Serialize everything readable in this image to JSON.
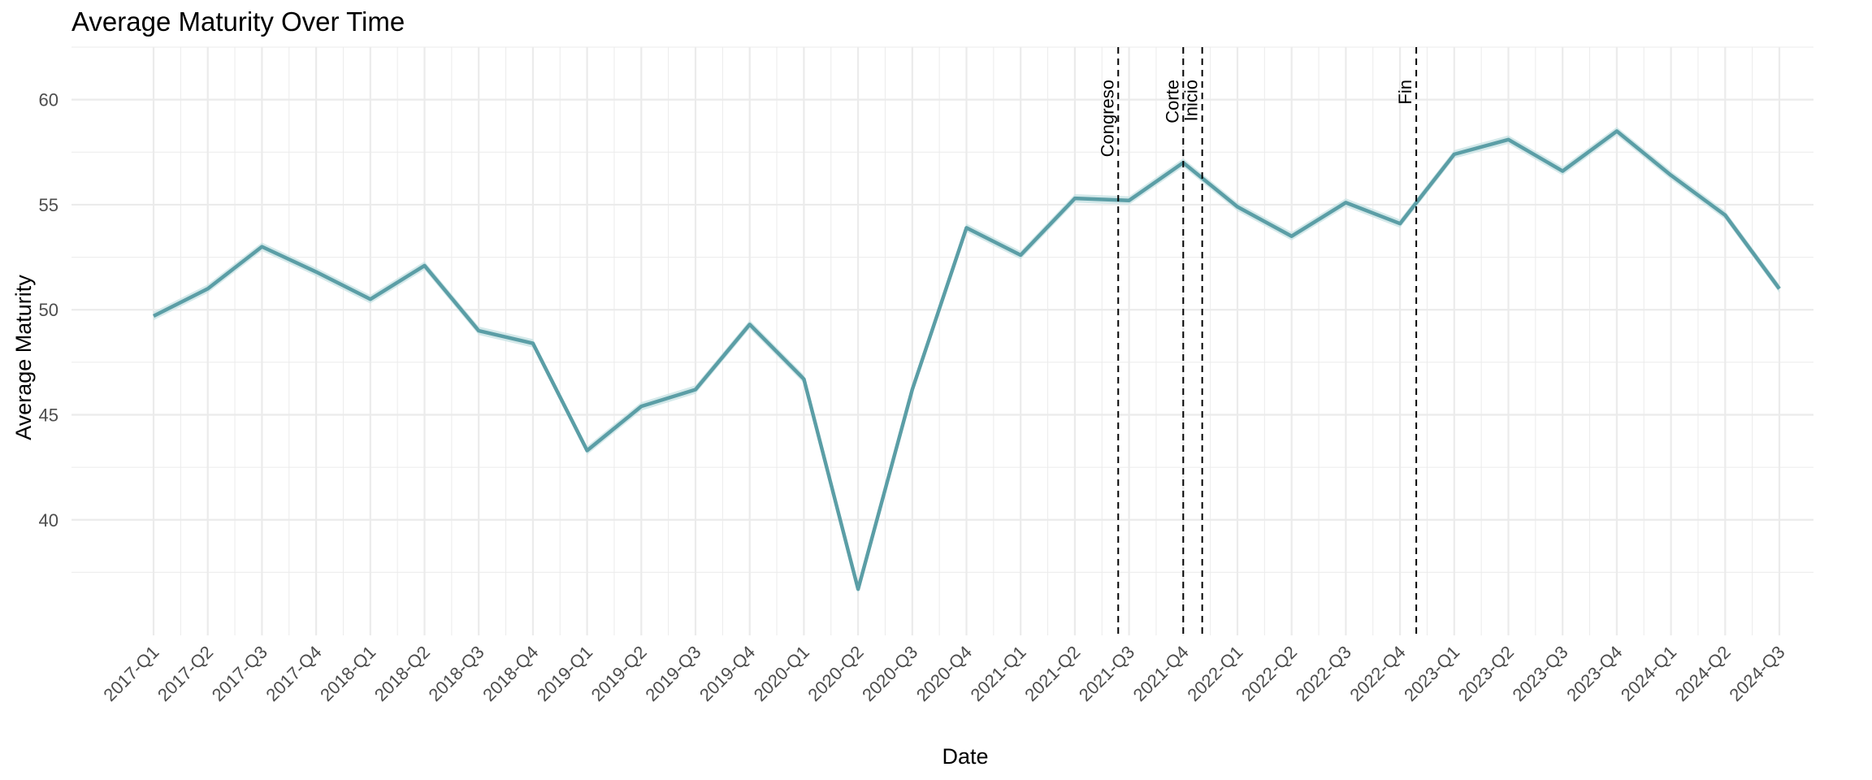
{
  "chart_data": {
    "type": "line",
    "title": "Average Maturity Over Time",
    "xlabel": "Date",
    "ylabel": "Average Maturity",
    "ylim": [
      34.5,
      62.5
    ],
    "yticks": [
      40,
      45,
      50,
      55,
      60
    ],
    "grid": true,
    "legend": "none",
    "colors": {
      "line": "#5b9ea6",
      "ribbon": "#c9e3e5",
      "grid": "#ebebeb",
      "vline": "#000000"
    },
    "categories": [
      "2017-Q1",
      "2017-Q2",
      "2017-Q3",
      "2017-Q4",
      "2018-Q1",
      "2018-Q2",
      "2018-Q3",
      "2018-Q4",
      "2019-Q1",
      "2019-Q2",
      "2019-Q3",
      "2019-Q4",
      "2020-Q1",
      "2020-Q2",
      "2020-Q3",
      "2020-Q4",
      "2021-Q1",
      "2021-Q2",
      "2021-Q3",
      "2021-Q4",
      "2022-Q1",
      "2022-Q2",
      "2022-Q3",
      "2022-Q4",
      "2023-Q1",
      "2023-Q2",
      "2023-Q3",
      "2023-Q4",
      "2024-Q1",
      "2024-Q2",
      "2024-Q3"
    ],
    "series": [
      {
        "values": [
          49.7,
          51.0,
          53.0,
          51.8,
          50.5,
          52.1,
          49.0,
          48.4,
          43.3,
          45.4,
          46.2,
          49.3,
          46.7,
          36.7,
          46.2,
          53.9,
          52.6,
          55.3,
          55.2,
          57.0,
          54.9,
          53.5,
          55.1,
          54.1,
          57.4,
          58.1,
          56.6,
          58.5,
          56.4,
          54.5,
          51.0
        ]
      }
    ],
    "annotations": [
      {
        "label": "Congreso",
        "x": 17.8
      },
      {
        "label": "Corte",
        "x": 19.0
      },
      {
        "label": "Inicio",
        "x": 19.35
      },
      {
        "label": "Fin",
        "x": 23.3
      }
    ]
  }
}
